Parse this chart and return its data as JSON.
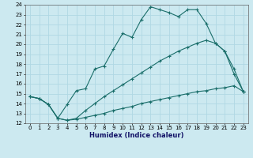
{
  "xlabel": "Humidex (Indice chaleur)",
  "bg_color": "#cce9f0",
  "grid_color": "#b0d8e4",
  "line_color": "#1a6e6a",
  "xlim": [
    -0.5,
    23.5
  ],
  "ylim": [
    12,
    24
  ],
  "xticks": [
    0,
    1,
    2,
    3,
    4,
    5,
    6,
    7,
    8,
    9,
    10,
    11,
    12,
    13,
    14,
    15,
    16,
    17,
    18,
    19,
    20,
    21,
    22,
    23
  ],
  "yticks": [
    12,
    13,
    14,
    15,
    16,
    17,
    18,
    19,
    20,
    21,
    22,
    23,
    24
  ],
  "line1_x": [
    0,
    1,
    2,
    3,
    4,
    5,
    6,
    7,
    8,
    9,
    10,
    11,
    12,
    13,
    14,
    15,
    16,
    17,
    18,
    19,
    20,
    21,
    22,
    23
  ],
  "line1_y": [
    14.7,
    14.5,
    13.9,
    12.5,
    13.9,
    15.3,
    15.5,
    17.5,
    17.8,
    19.5,
    21.1,
    20.7,
    22.5,
    23.8,
    23.5,
    23.2,
    22.8,
    23.5,
    23.5,
    22.1,
    20.1,
    19.3,
    17.0,
    15.2
  ],
  "line2_x": [
    0,
    1,
    2,
    3,
    4,
    5,
    6,
    7,
    8,
    9,
    10,
    11,
    12,
    13,
    14,
    15,
    16,
    17,
    18,
    19,
    20,
    21,
    22,
    23
  ],
  "line2_y": [
    14.7,
    14.5,
    13.9,
    12.5,
    12.3,
    12.5,
    13.3,
    14.0,
    14.7,
    15.3,
    15.9,
    16.5,
    17.1,
    17.7,
    18.3,
    18.8,
    19.3,
    19.7,
    20.1,
    20.4,
    20.1,
    19.3,
    17.5,
    15.2
  ],
  "line3_x": [
    0,
    1,
    2,
    3,
    4,
    5,
    6,
    7,
    8,
    9,
    10,
    11,
    12,
    13,
    14,
    15,
    16,
    17,
    18,
    19,
    20,
    21,
    22,
    23
  ],
  "line3_y": [
    14.7,
    14.5,
    13.9,
    12.5,
    12.3,
    12.4,
    12.6,
    12.8,
    13.0,
    13.3,
    13.5,
    13.7,
    14.0,
    14.2,
    14.4,
    14.6,
    14.8,
    15.0,
    15.2,
    15.3,
    15.5,
    15.6,
    15.8,
    15.2
  ]
}
